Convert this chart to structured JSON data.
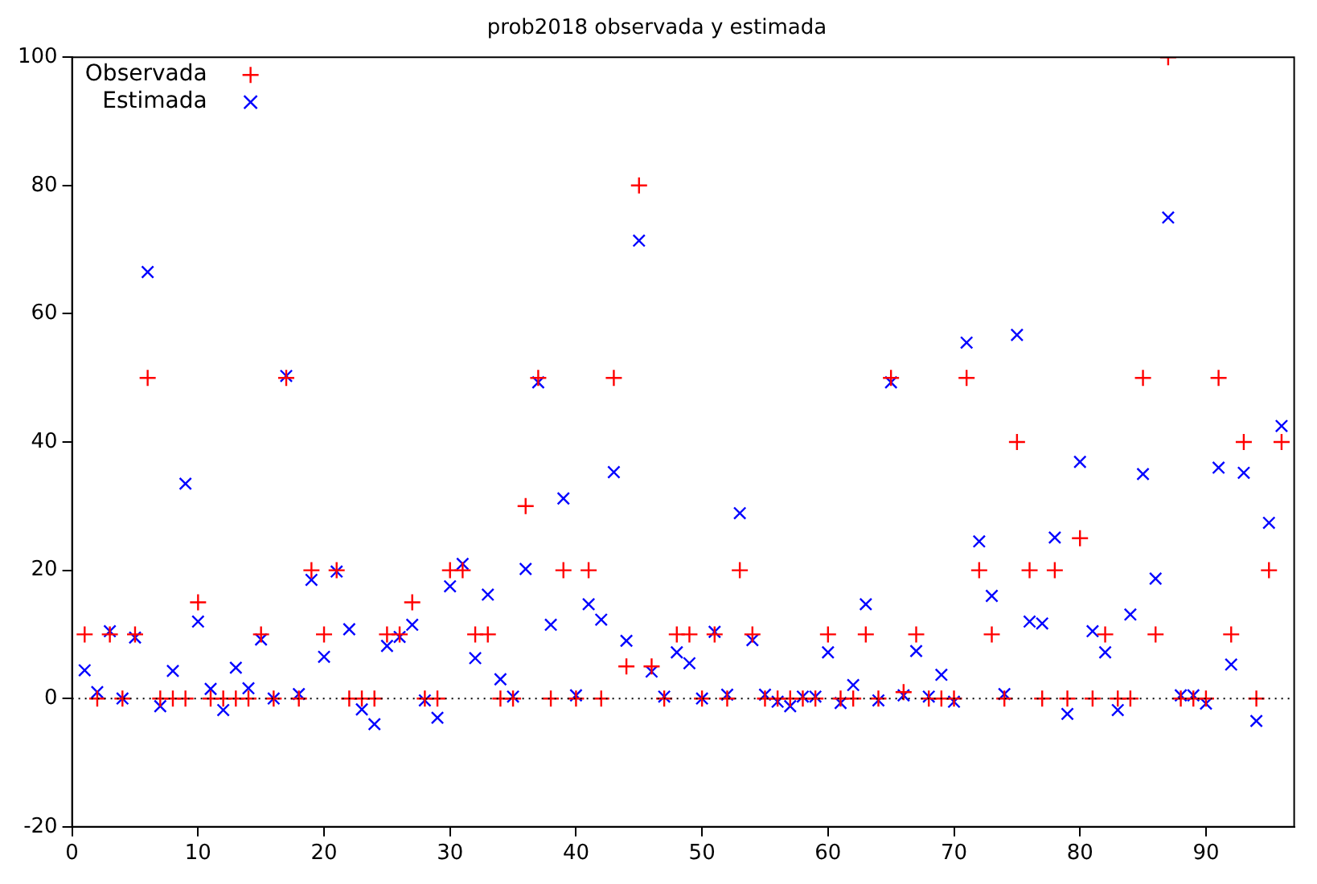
{
  "chart_data": {
    "type": "scatter",
    "title": "prob2018 observada y estimada",
    "x": [
      1,
      2,
      3,
      4,
      5,
      6,
      7,
      8,
      9,
      10,
      11,
      12,
      13,
      14,
      15,
      16,
      17,
      18,
      19,
      20,
      21,
      22,
      23,
      24,
      25,
      26,
      27,
      28,
      29,
      30,
      31,
      32,
      33,
      34,
      35,
      36,
      37,
      38,
      39,
      40,
      41,
      42,
      43,
      44,
      45,
      46,
      47,
      48,
      49,
      50,
      51,
      52,
      53,
      54,
      55,
      56,
      57,
      58,
      59,
      60,
      61,
      62,
      63,
      64,
      65,
      66,
      67,
      68,
      69,
      70,
      71,
      72,
      73,
      74,
      75,
      76,
      77,
      78,
      79,
      80,
      81,
      82,
      83,
      84,
      85,
      86,
      87,
      88,
      89,
      90,
      91,
      92,
      93,
      94,
      95,
      96
    ],
    "series": [
      {
        "name": "Observada",
        "color": "#ff0000",
        "marker": "cross",
        "values": [
          10,
          0,
          10,
          0,
          10,
          50,
          0,
          0,
          0,
          15,
          0,
          0,
          0,
          0,
          10,
          0,
          50,
          0,
          20,
          10,
          20,
          0,
          0,
          0,
          10,
          10,
          15,
          0,
          0,
          20,
          20,
          10,
          10,
          0,
          0,
          30,
          50,
          0,
          20,
          0,
          20,
          0,
          50,
          5,
          80,
          5,
          0,
          10,
          10,
          0,
          10,
          0,
          20,
          10,
          0,
          0,
          0,
          0,
          0,
          10,
          0,
          0,
          10,
          0,
          50,
          1,
          10,
          0,
          0,
          0,
          50,
          20,
          10,
          0,
          40,
          20,
          0,
          20,
          0,
          25,
          0,
          10,
          0,
          0,
          50,
          10,
          100,
          0,
          0,
          0,
          50,
          10,
          40,
          0,
          20,
          40
        ]
      },
      {
        "name": "Estimada",
        "color": "#0000ff",
        "marker": "cross",
        "values": [
          4.4,
          1,
          10.5,
          0,
          9.5,
          66.5,
          -1.2,
          4.3,
          33.5,
          12,
          1.5,
          -1.8,
          4.8,
          1.6,
          9.2,
          0,
          50.3,
          0.7,
          18.5,
          6.5,
          19.8,
          10.8,
          -1.7,
          -4,
          8.2,
          9.6,
          11.5,
          -0.3,
          -3,
          17.5,
          21,
          6.3,
          16.2,
          3,
          0.3,
          20.2,
          49.3,
          11.5,
          31.2,
          0.5,
          14.7,
          12.3,
          35.3,
          9,
          71.4,
          4.2,
          0.3,
          7.2,
          5.5,
          0,
          10.4,
          0.6,
          28.9,
          9.1,
          0.6,
          -0.5,
          -1.2,
          0.3,
          0.3,
          7.2,
          -0.7,
          2.1,
          14.7,
          -0.3,
          49.3,
          0.5,
          7.4,
          0.3,
          3.7,
          -0.5,
          55.5,
          24.5,
          16,
          0.7,
          56.7,
          12,
          11.7,
          25.1,
          -2.4,
          36.9,
          10.5,
          7.2,
          -1.8,
          13.1,
          35,
          18.7,
          75,
          0.5,
          0.5,
          -0.8,
          36,
          5.3,
          35.2,
          -3.5,
          27.4,
          42.5
        ]
      }
    ],
    "xlim": [
      0,
      97
    ],
    "xticks": [
      0,
      10,
      20,
      30,
      40,
      50,
      60,
      70,
      80,
      90
    ],
    "ylim": [
      -20,
      100
    ],
    "yticks": [
      -20,
      0,
      20,
      40,
      60,
      80,
      100
    ],
    "ref_lines": [
      {
        "axis": "y",
        "value": 0,
        "line_style": "dotted",
        "color": "#000000"
      }
    ],
    "grid": false,
    "legend": "top left"
  }
}
